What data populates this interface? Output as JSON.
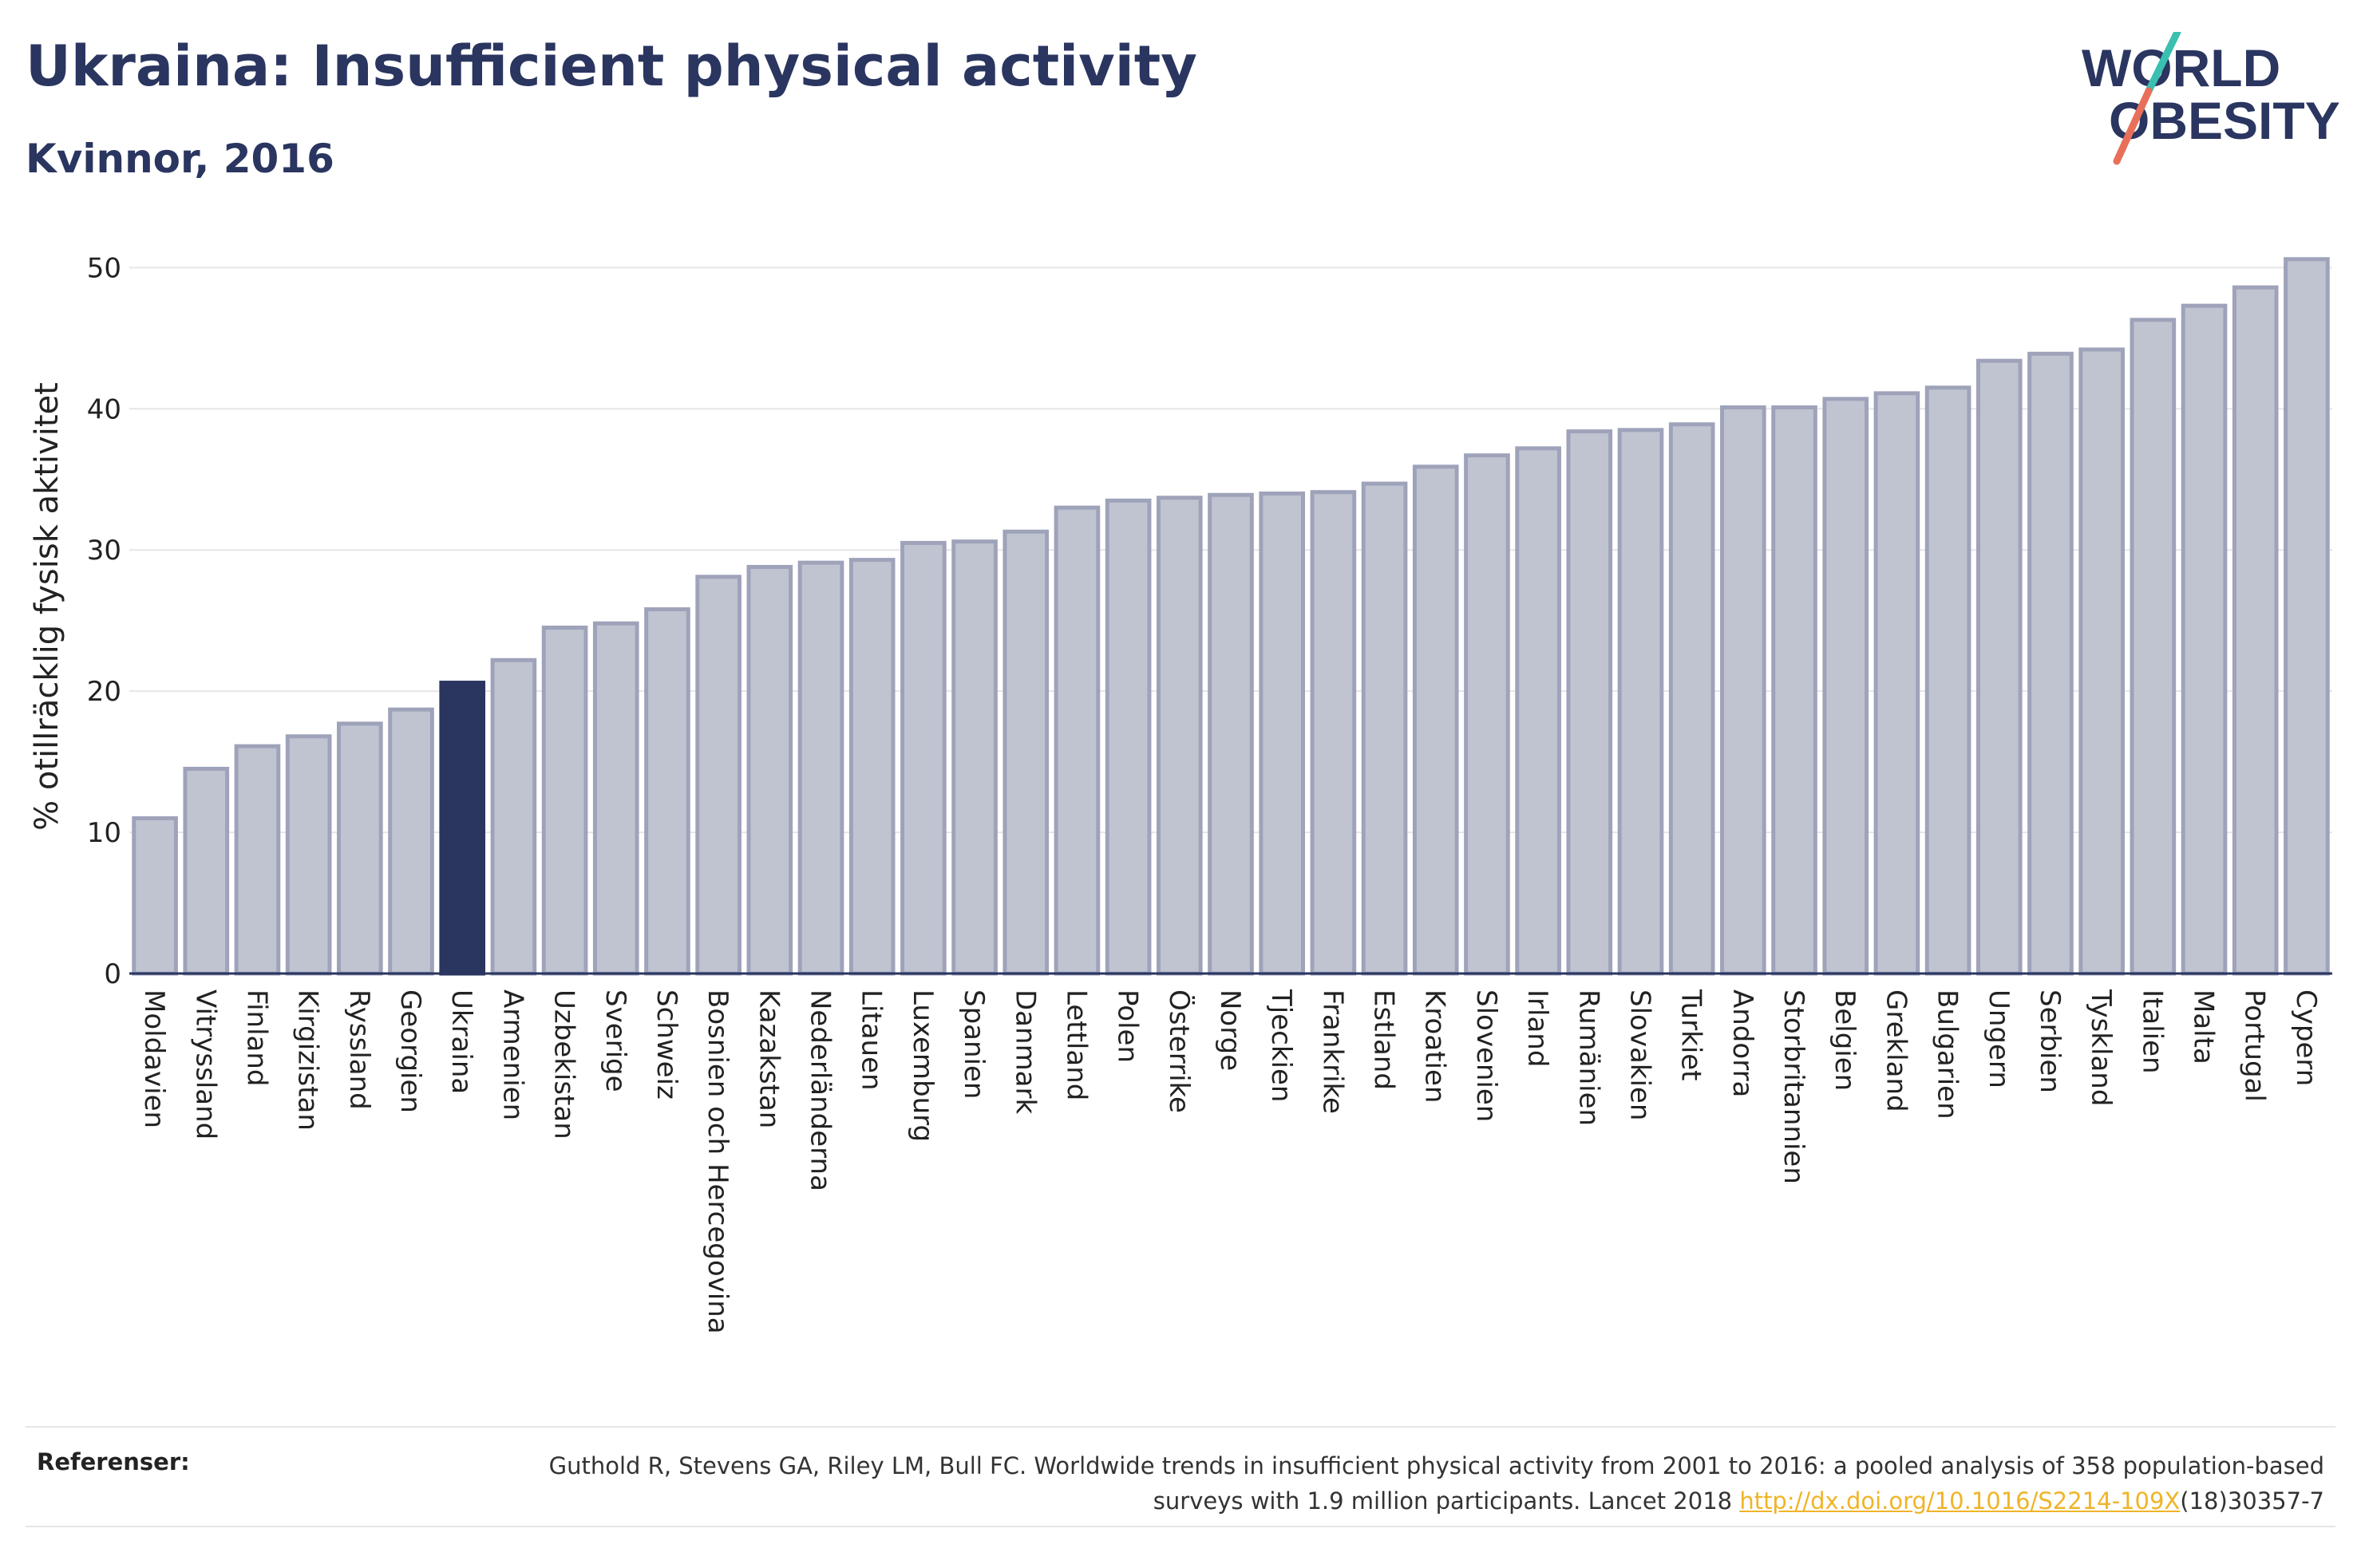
{
  "header": {
    "title": "Ukraina: Insufficient physical activity",
    "subtitle": "Kvinnor, 2016"
  },
  "logo": {
    "line1": "WORLD",
    "line2": "OBESITY",
    "colors": {
      "text": "#2a3560",
      "slash_top": "#3bbfb0",
      "slash_bottom": "#e8705a"
    }
  },
  "colors": {
    "bar_fill": "#c0c4d1",
    "bar_stroke": "#9ea3ba",
    "highlight_fill": "#2a3560",
    "axis": "#2a3560",
    "grid": "#e6e6e6"
  },
  "chart_data": {
    "type": "bar",
    "title": "Ukraina: Insufficient physical activity",
    "subtitle": "Kvinnor, 2016",
    "xlabel": "",
    "ylabel": "% otillräcklig fysisk aktivitet",
    "ylim": [
      0,
      52
    ],
    "yticks": [
      0,
      10,
      20,
      30,
      40,
      50
    ],
    "grid": true,
    "highlight": "Ukraina",
    "categories": [
      "Moldavien",
      "Vitryssland",
      "Finland",
      "Kirgizistan",
      "Ryssland",
      "Georgien",
      "Ukraina",
      "Armenien",
      "Uzbekistan",
      "Sverige",
      "Schweiz",
      "Bosnien och Hercegovina",
      "Kazakstan",
      "Nederländerna",
      "Litauen",
      "Luxemburg",
      "Spanien",
      "Danmark",
      "Lettland",
      "Polen",
      "Österrike",
      "Norge",
      "Tjeckien",
      "Frankrike",
      "Estland",
      "Kroatien",
      "Slovenien",
      "Irland",
      "Rumänien",
      "Slovakien",
      "Turkiet",
      "Andorra",
      "Storbritannien",
      "Belgien",
      "Grekland",
      "Bulgarien",
      "Ungern",
      "Serbien",
      "Tyskland",
      "Italien",
      "Malta",
      "Portugal",
      "Cypern"
    ],
    "values": [
      11.0,
      14.5,
      16.1,
      16.8,
      17.7,
      18.7,
      20.6,
      22.2,
      24.5,
      24.8,
      25.8,
      28.1,
      28.8,
      29.1,
      29.3,
      30.5,
      30.6,
      31.3,
      33.0,
      33.5,
      33.7,
      33.9,
      34.0,
      34.1,
      34.7,
      35.9,
      36.7,
      37.2,
      38.4,
      38.5,
      38.9,
      40.1,
      40.1,
      40.7,
      41.1,
      41.5,
      43.4,
      43.9,
      44.2,
      46.3,
      47.3,
      48.6,
      50.6
    ]
  },
  "references": {
    "label": "Referenser:",
    "text_before": "Guthold R, Stevens GA, Riley LM, Bull FC. Worldwide trends in insufficient physical activity from 2001 to 2016: a pooled analysis of 358 population-based surveys with 1.9 million participants. Lancet 2018 ",
    "link": "http://dx.doi.org/10.1016/S2214-109X",
    "text_after": "(18)30357-7"
  }
}
